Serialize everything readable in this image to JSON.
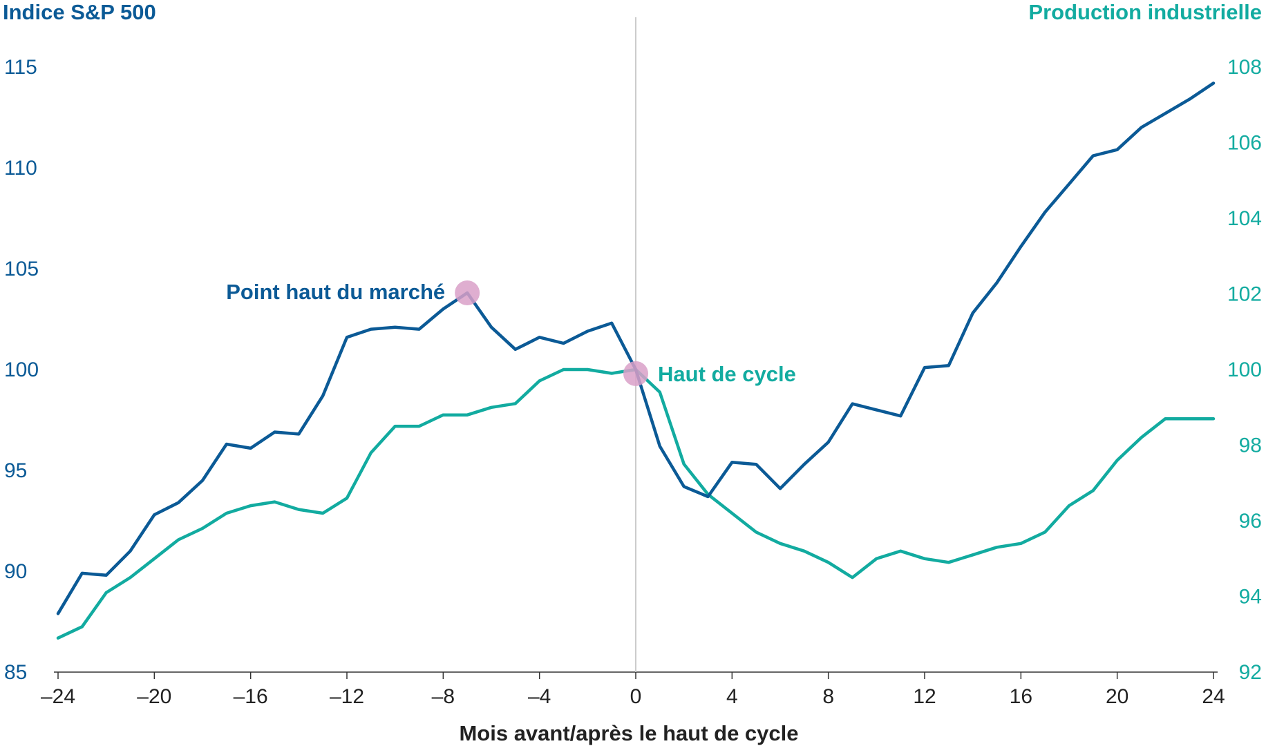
{
  "colors": {
    "sp500": "#0b5a96",
    "industrial_production": "#12aba0",
    "marker": "#d9a0c8",
    "baseline": "#cccccc",
    "axis": "#333333"
  },
  "chart_data": {
    "type": "line",
    "xlabel": "Mois avant/après le haut de cycle",
    "x": [
      -24,
      -23,
      -22,
      -21,
      -20,
      -19,
      -18,
      -17,
      -16,
      -15,
      -14,
      -13,
      -12,
      -11,
      -10,
      -9,
      -8,
      -7,
      -6,
      -5,
      -4,
      -3,
      -2,
      -1,
      0,
      1,
      2,
      3,
      4,
      5,
      6,
      7,
      8,
      9,
      10,
      11,
      12,
      13,
      14,
      15,
      16,
      17,
      18,
      19,
      20,
      21,
      22,
      23,
      24
    ],
    "xlim": [
      -24,
      24
    ],
    "xticks": [
      "–24",
      "–20",
      "–16",
      "–12",
      "–8",
      "–4",
      "0",
      "4",
      "8",
      "12",
      "16",
      "20",
      "24"
    ],
    "xtick_values": [
      -24,
      -20,
      -16,
      -12,
      -8,
      -4,
      0,
      4,
      8,
      12,
      16,
      20,
      24
    ],
    "left_axis": {
      "title": "Indice S&P 500",
      "ylim": [
        85,
        115
      ],
      "ticks": [
        "85",
        "90",
        "95",
        "100",
        "105",
        "110",
        "115"
      ],
      "tick_values": [
        85,
        90,
        95,
        100,
        105,
        110,
        115
      ]
    },
    "right_axis": {
      "title": "Production industrielle",
      "ylim": [
        92,
        108
      ],
      "ticks": [
        "92",
        "94",
        "96",
        "98",
        "100",
        "102",
        "104",
        "106",
        "108"
      ],
      "tick_values": [
        92,
        94,
        96,
        98,
        100,
        102,
        104,
        106,
        108
      ]
    },
    "series": [
      {
        "axis": "left",
        "values": [
          87.9,
          89.9,
          89.8,
          91.0,
          92.8,
          93.4,
          94.5,
          96.3,
          96.1,
          96.9,
          96.8,
          98.7,
          101.6,
          102.0,
          102.1,
          102.0,
          103.0,
          103.8,
          102.1,
          101.0,
          101.6,
          101.3,
          101.9,
          102.3,
          100.0,
          96.2,
          94.2,
          93.7,
          95.4,
          95.3,
          94.1,
          95.3,
          96.4,
          98.3,
          98.0,
          97.7,
          100.1,
          100.2,
          102.8,
          104.3,
          106.1,
          107.8,
          109.2,
          110.6,
          110.9,
          112.0,
          112.7,
          113.4,
          114.2
        ]
      },
      {
        "axis": "right",
        "values": [
          92.9,
          93.2,
          94.1,
          94.5,
          95.0,
          95.5,
          95.8,
          96.2,
          96.4,
          96.5,
          96.3,
          96.2,
          96.6,
          97.8,
          98.5,
          98.5,
          98.8,
          98.8,
          99.0,
          99.1,
          99.7,
          100.0,
          100.0,
          99.9,
          100.0,
          99.4,
          97.5,
          96.7,
          96.2,
          95.7,
          95.4,
          95.2,
          94.9,
          94.5,
          95.0,
          95.2,
          95.0,
          94.9,
          95.1,
          95.3,
          95.4,
          95.7,
          96.4,
          96.8,
          97.6,
          98.2,
          98.7,
          98.7,
          98.7
        ]
      }
    ],
    "annotations": [
      {
        "text": "Point haut du marché",
        "x": -7,
        "y": 103.8,
        "axis": "left"
      },
      {
        "text": "Haut de cycle",
        "x": 0,
        "y": 99.8,
        "axis": "left"
      }
    ]
  }
}
